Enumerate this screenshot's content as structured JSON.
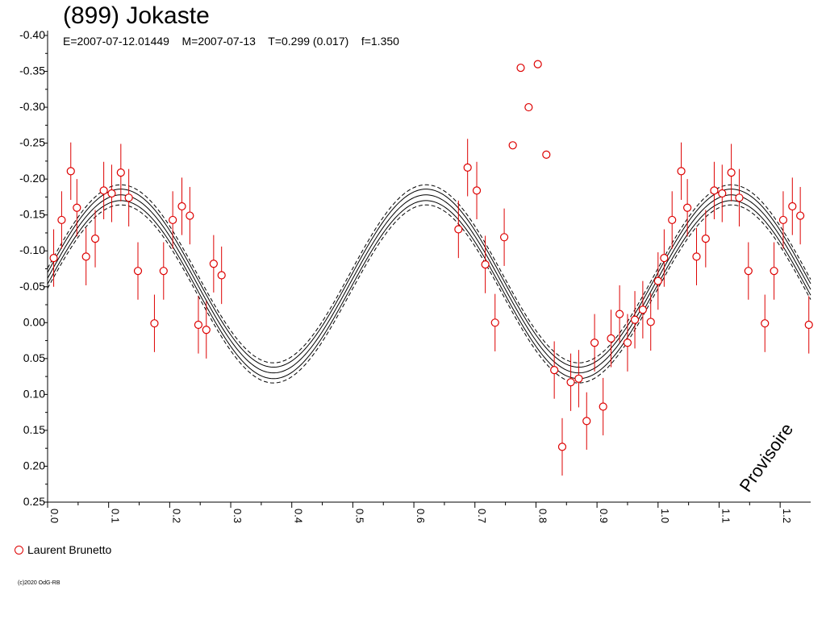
{
  "header": {
    "title": "(899) Jokaste",
    "subtitle": "E=2007-07-12.01449    M=2007-07-13    T=0.299 (0.017)    f=1.350"
  },
  "watermark": "Provisoire",
  "legend": {
    "label": "Laurent Brunetto",
    "marker": "open-circle",
    "color": "#dd0000"
  },
  "copyright": "(c)2020 OdG-RB",
  "chart_data": {
    "type": "scatter",
    "title": "(899) Jokaste",
    "xlabel": "",
    "ylabel": "",
    "xlim": [
      0.0,
      1.25
    ],
    "ylim": [
      -0.4,
      0.25
    ],
    "y_inverted": true,
    "xticks": [
      "0.0",
      "0.1",
      "0.2",
      "0.3",
      "0.4",
      "0.5",
      "0.6",
      "0.7",
      "0.8",
      "0.9",
      "1.0",
      "1.1",
      "1.2"
    ],
    "yticks": [
      "-0.40",
      "-0.35",
      "-0.30",
      "-0.25",
      "-0.20",
      "-0.15",
      "-0.10",
      "-0.05",
      "0.00",
      "0.05",
      "0.10",
      "0.15",
      "0.20",
      "0.25"
    ],
    "grid": false,
    "legend_position": "bottom-left",
    "model": {
      "period_fraction": 1.35,
      "amplitude_line": "solid",
      "error_band_line": "dashed",
      "peak_phases": [
        0.12,
        0.62,
        1.12
      ],
      "peak_value": -0.178,
      "trough_value": 0.07,
      "band_offsets": [
        0.008,
        0.014
      ],
      "color": "#000000"
    },
    "series": [
      {
        "name": "Laurent Brunetto",
        "color": "#dd0000",
        "marker": "open-circle",
        "points": [
          {
            "x": 0.01,
            "y": -0.09,
            "err": 0.04
          },
          {
            "x": 0.023,
            "y": -0.143,
            "err": 0.04
          },
          {
            "x": 0.038,
            "y": -0.211,
            "err": 0.04
          },
          {
            "x": 0.048,
            "y": -0.16,
            "err": 0.04
          },
          {
            "x": 0.063,
            "y": -0.092,
            "err": 0.04
          },
          {
            "x": 0.078,
            "y": -0.117,
            "err": 0.04
          },
          {
            "x": 0.092,
            "y": -0.184,
            "err": 0.04
          },
          {
            "x": 0.105,
            "y": -0.18,
            "err": 0.04
          },
          {
            "x": 0.12,
            "y": -0.209,
            "err": 0.04
          },
          {
            "x": 0.133,
            "y": -0.174,
            "err": 0.04
          },
          {
            "x": 0.148,
            "y": -0.072,
            "err": 0.04
          },
          {
            "x": 0.175,
            "y": 0.001,
            "err": 0.04
          },
          {
            "x": 0.19,
            "y": -0.072,
            "err": 0.04
          },
          {
            "x": 0.205,
            "y": -0.143,
            "err": 0.04
          },
          {
            "x": 0.22,
            "y": -0.162,
            "err": 0.04
          },
          {
            "x": 0.233,
            "y": -0.149,
            "err": 0.04
          },
          {
            "x": 0.247,
            "y": 0.003,
            "err": 0.04
          },
          {
            "x": 0.26,
            "y": 0.01,
            "err": 0.04
          },
          {
            "x": 0.272,
            "y": -0.082,
            "err": 0.04
          },
          {
            "x": 0.285,
            "y": -0.066,
            "err": 0.04
          },
          {
            "x": 0.673,
            "y": -0.13,
            "err": 0.04
          },
          {
            "x": 0.688,
            "y": -0.216,
            "err": 0.04
          },
          {
            "x": 0.703,
            "y": -0.184,
            "err": 0.04
          },
          {
            "x": 0.717,
            "y": -0.081,
            "err": 0.04
          },
          {
            "x": 0.733,
            "y": 0.0,
            "err": 0.04
          },
          {
            "x": 0.748,
            "y": -0.119,
            "err": 0.04
          },
          {
            "x": 0.762,
            "y": -0.247,
            "err": null
          },
          {
            "x": 0.775,
            "y": -0.355,
            "err": null
          },
          {
            "x": 0.788,
            "y": -0.3,
            "err": null
          },
          {
            "x": 0.803,
            "y": -0.36,
            "err": null
          },
          {
            "x": 0.817,
            "y": -0.234,
            "err": null
          },
          {
            "x": 0.83,
            "y": 0.066,
            "err": 0.04
          },
          {
            "x": 0.843,
            "y": 0.173,
            "err": 0.04
          },
          {
            "x": 0.857,
            "y": 0.083,
            "err": 0.04
          },
          {
            "x": 0.87,
            "y": 0.078,
            "err": 0.04
          },
          {
            "x": 0.883,
            "y": 0.137,
            "err": 0.04
          },
          {
            "x": 0.896,
            "y": 0.028,
            "err": 0.04
          },
          {
            "x": 0.91,
            "y": 0.117,
            "err": 0.04
          },
          {
            "x": 0.923,
            "y": 0.022,
            "err": 0.04
          },
          {
            "x": 0.937,
            "y": -0.012,
            "err": 0.04
          },
          {
            "x": 0.95,
            "y": 0.028,
            "err": 0.04
          },
          {
            "x": 0.962,
            "y": -0.004,
            "err": 0.04
          },
          {
            "x": 0.975,
            "y": -0.018,
            "err": 0.04
          },
          {
            "x": 0.988,
            "y": -0.001,
            "err": 0.04
          },
          {
            "x": 1.0,
            "y": -0.058,
            "err": 0.04
          },
          {
            "x": 1.01,
            "y": -0.09,
            "err": 0.04
          },
          {
            "x": 1.023,
            "y": -0.143,
            "err": 0.04
          },
          {
            "x": 1.038,
            "y": -0.211,
            "err": 0.04
          },
          {
            "x": 1.048,
            "y": -0.16,
            "err": 0.04
          },
          {
            "x": 1.063,
            "y": -0.092,
            "err": 0.04
          },
          {
            "x": 1.078,
            "y": -0.117,
            "err": 0.04
          },
          {
            "x": 1.092,
            "y": -0.184,
            "err": 0.04
          },
          {
            "x": 1.105,
            "y": -0.18,
            "err": 0.04
          },
          {
            "x": 1.12,
            "y": -0.209,
            "err": 0.04
          },
          {
            "x": 1.133,
            "y": -0.174,
            "err": 0.04
          },
          {
            "x": 1.148,
            "y": -0.072,
            "err": 0.04
          },
          {
            "x": 1.175,
            "y": 0.001,
            "err": 0.04
          },
          {
            "x": 1.19,
            "y": -0.072,
            "err": 0.04
          },
          {
            "x": 1.205,
            "y": -0.143,
            "err": 0.04
          },
          {
            "x": 1.22,
            "y": -0.162,
            "err": 0.04
          },
          {
            "x": 1.233,
            "y": -0.149,
            "err": 0.04
          },
          {
            "x": 1.247,
            "y": 0.003,
            "err": 0.04
          }
        ]
      }
    ]
  }
}
